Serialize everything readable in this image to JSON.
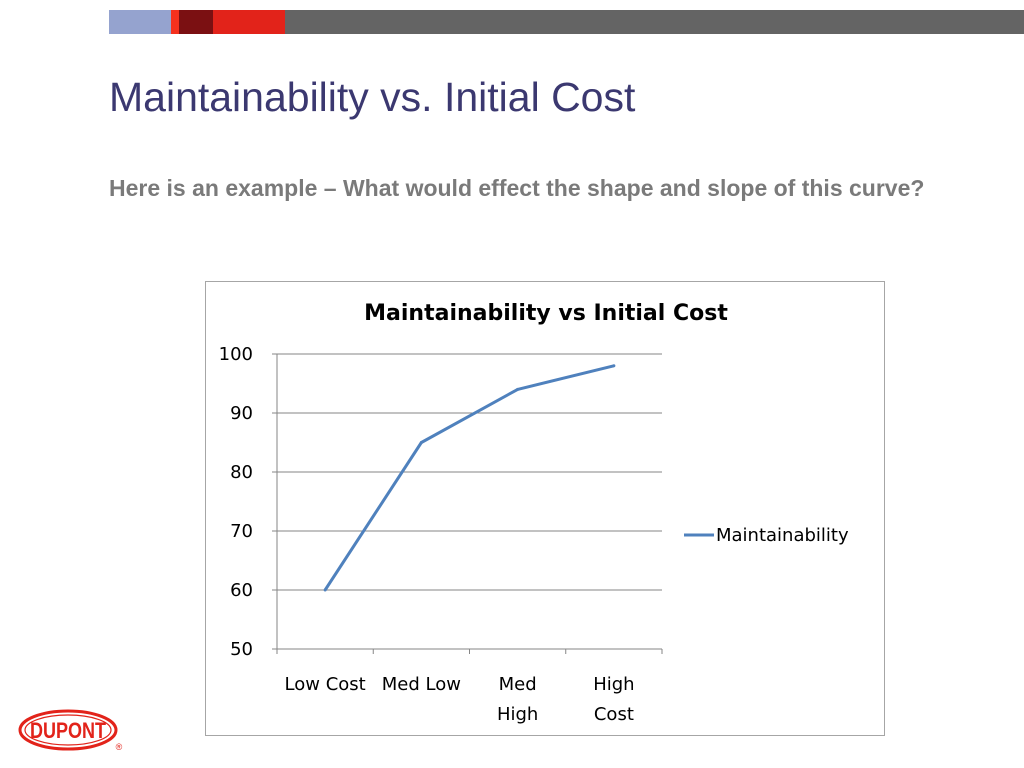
{
  "colors": {
    "title": "#3b3870",
    "bullet": "#7a7a7a",
    "line": "#4f81bd",
    "grid": "#868686",
    "logo": "#e2231a",
    "bar_segments": [
      "#95a3cf",
      "#f5311e",
      "#7b1012",
      "#e2231a",
      "#646464"
    ]
  },
  "slide": {
    "title": "Maintainability vs. Initial Cost",
    "bullet": "Here is an example – What would effect the shape and slope of this curve?"
  },
  "logo": {
    "text": "DUPONT",
    "mark": "®",
    "icon": "dupont-oval-logo"
  },
  "chart_data": {
    "type": "line",
    "title": "Maintainability vs Initial Cost",
    "categories": [
      [
        "Low Cost"
      ],
      [
        "Med Low"
      ],
      [
        "Med",
        "High"
      ],
      [
        "High",
        "Cost"
      ]
    ],
    "series": [
      {
        "name": "Maintainability",
        "values": [
          60,
          85,
          94,
          98
        ]
      }
    ],
    "ylim": [
      50,
      100
    ],
    "ytick_step": 10,
    "grid": true,
    "legend_position": "right"
  }
}
